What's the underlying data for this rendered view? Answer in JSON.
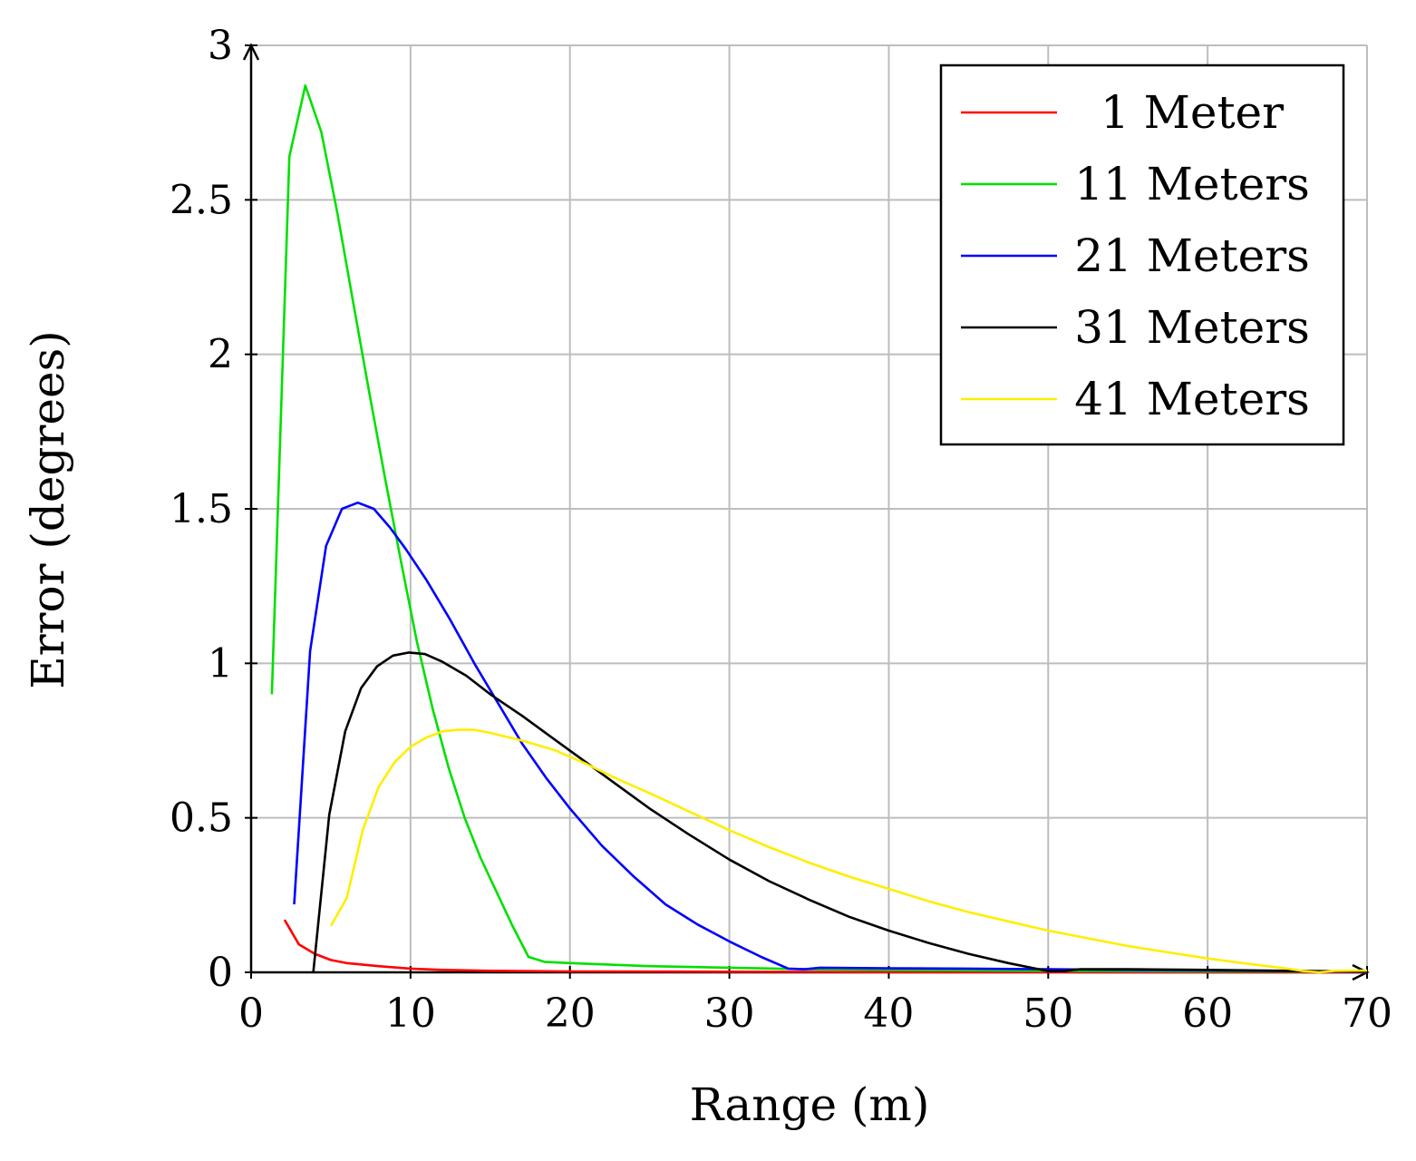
{
  "chart_data": {
    "type": "line",
    "title": "",
    "xlabel": "Range (m)",
    "ylabel": "Error (degrees)",
    "xlim": [
      0,
      70
    ],
    "ylim": [
      0,
      3
    ],
    "x_ticks": [
      0,
      10,
      20,
      30,
      40,
      50,
      60,
      70
    ],
    "y_ticks": [
      0,
      0.5,
      1,
      1.5,
      2,
      2.5,
      3
    ],
    "x_tick_labels": [
      "0",
      "10",
      "20",
      "30",
      "40",
      "50",
      "60",
      "70"
    ],
    "y_tick_labels": [
      "0",
      "0.5",
      "1",
      "1.5",
      "2",
      "2.5",
      "3"
    ],
    "grid": true,
    "legend_position": "top-right",
    "series": [
      {
        "name": "1 Meter",
        "color": "#ff0000",
        "points": [
          [
            2.1,
            0.17
          ],
          [
            3.0,
            0.09
          ],
          [
            4.0,
            0.06
          ],
          [
            5.0,
            0.04
          ],
          [
            6.0,
            0.03
          ],
          [
            8.0,
            0.02
          ],
          [
            10.0,
            0.012
          ],
          [
            12.0,
            0.008
          ],
          [
            15.0,
            0.005
          ],
          [
            20.0,
            0.003
          ],
          [
            30.0,
            0.002
          ],
          [
            40.0,
            0.001
          ],
          [
            50.0,
            0.001
          ],
          [
            70.0,
            0.0
          ]
        ]
      },
      {
        "name": "11 Meters",
        "color": "#00e000",
        "points": [
          [
            1.3,
            0.9
          ],
          [
            2.4,
            2.64
          ],
          [
            3.4,
            2.87
          ],
          [
            4.4,
            2.72
          ],
          [
            5.4,
            2.46
          ],
          [
            6.4,
            2.17
          ],
          [
            7.4,
            1.88
          ],
          [
            8.4,
            1.6
          ],
          [
            9.4,
            1.33
          ],
          [
            10.4,
            1.07
          ],
          [
            11.4,
            0.85
          ],
          [
            12.4,
            0.66
          ],
          [
            13.4,
            0.5
          ],
          [
            14.4,
            0.37
          ],
          [
            15.4,
            0.26
          ],
          [
            16.4,
            0.15
          ],
          [
            17.4,
            0.05
          ],
          [
            18.4,
            0.034
          ],
          [
            20.0,
            0.03
          ],
          [
            25.0,
            0.02
          ],
          [
            30.0,
            0.015
          ],
          [
            35.0,
            0.01
          ],
          [
            40.0,
            0.008
          ],
          [
            50.0,
            0.005
          ],
          [
            60.0,
            0.003
          ],
          [
            70.0,
            0.002
          ]
        ]
      },
      {
        "name": "21 Meters",
        "color": "#0000ff",
        "points": [
          [
            2.7,
            0.22
          ],
          [
            3.7,
            1.04
          ],
          [
            4.7,
            1.38
          ],
          [
            5.7,
            1.5
          ],
          [
            6.7,
            1.52
          ],
          [
            7.7,
            1.5
          ],
          [
            8.7,
            1.44
          ],
          [
            9.7,
            1.37
          ],
          [
            11.0,
            1.27
          ],
          [
            12.5,
            1.14
          ],
          [
            14.0,
            1.0
          ],
          [
            15.5,
            0.87
          ],
          [
            17.0,
            0.74
          ],
          [
            18.5,
            0.63
          ],
          [
            20.0,
            0.53
          ],
          [
            22.0,
            0.41
          ],
          [
            24.0,
            0.31
          ],
          [
            26.0,
            0.22
          ],
          [
            28.0,
            0.155
          ],
          [
            30.0,
            0.1
          ],
          [
            32.0,
            0.05
          ],
          [
            33.7,
            0.012
          ],
          [
            34.7,
            0.01
          ],
          [
            35.7,
            0.015
          ],
          [
            40.0,
            0.013
          ],
          [
            45.0,
            0.012
          ],
          [
            50.0,
            0.01
          ],
          [
            55.0,
            0.008
          ],
          [
            60.0,
            0.006
          ],
          [
            65.0,
            0.004
          ],
          [
            70.0,
            0.002
          ]
        ]
      },
      {
        "name": "31 Meters",
        "color": "#000000",
        "points": [
          [
            3.9,
            0.0
          ],
          [
            4.9,
            0.51
          ],
          [
            5.9,
            0.78
          ],
          [
            6.9,
            0.92
          ],
          [
            7.9,
            0.99
          ],
          [
            8.9,
            1.025
          ],
          [
            9.9,
            1.035
          ],
          [
            10.9,
            1.03
          ],
          [
            12.0,
            1.005
          ],
          [
            13.5,
            0.96
          ],
          [
            15.0,
            0.9
          ],
          [
            17.0,
            0.83
          ],
          [
            19.0,
            0.755
          ],
          [
            21.0,
            0.68
          ],
          [
            23.0,
            0.605
          ],
          [
            25.0,
            0.53
          ],
          [
            27.5,
            0.445
          ],
          [
            30.0,
            0.365
          ],
          [
            32.5,
            0.295
          ],
          [
            35.0,
            0.235
          ],
          [
            37.5,
            0.18
          ],
          [
            40.0,
            0.135
          ],
          [
            42.5,
            0.095
          ],
          [
            45.0,
            0.06
          ],
          [
            47.5,
            0.03
          ],
          [
            50.0,
            0.004
          ],
          [
            51.0,
            0.004
          ],
          [
            52.0,
            0.01
          ],
          [
            55.0,
            0.01
          ],
          [
            60.0,
            0.008
          ],
          [
            65.0,
            0.005
          ],
          [
            70.0,
            0.003
          ]
        ]
      },
      {
        "name": "41 Meters",
        "color": "#ffee00",
        "points": [
          [
            5.0,
            0.15
          ],
          [
            6.0,
            0.24
          ],
          [
            7.0,
            0.46
          ],
          [
            8.0,
            0.6
          ],
          [
            9.0,
            0.68
          ],
          [
            10.0,
            0.73
          ],
          [
            11.0,
            0.76
          ],
          [
            12.0,
            0.78
          ],
          [
            13.0,
            0.785
          ],
          [
            14.0,
            0.785
          ],
          [
            15.0,
            0.775
          ],
          [
            17.0,
            0.75
          ],
          [
            19.0,
            0.72
          ],
          [
            21.0,
            0.675
          ],
          [
            23.0,
            0.625
          ],
          [
            25.0,
            0.58
          ],
          [
            27.5,
            0.52
          ],
          [
            30.0,
            0.46
          ],
          [
            32.5,
            0.405
          ],
          [
            35.0,
            0.355
          ],
          [
            37.5,
            0.31
          ],
          [
            40.0,
            0.27
          ],
          [
            42.5,
            0.23
          ],
          [
            45.0,
            0.195
          ],
          [
            47.5,
            0.165
          ],
          [
            50.0,
            0.135
          ],
          [
            52.5,
            0.11
          ],
          [
            55.0,
            0.085
          ],
          [
            57.5,
            0.065
          ],
          [
            60.0,
            0.045
          ],
          [
            62.5,
            0.028
          ],
          [
            65.0,
            0.012
          ],
          [
            66.0,
            0.004
          ],
          [
            67.0,
            0.0
          ],
          [
            68.0,
            0.005
          ],
          [
            70.0,
            0.006
          ]
        ]
      }
    ]
  }
}
